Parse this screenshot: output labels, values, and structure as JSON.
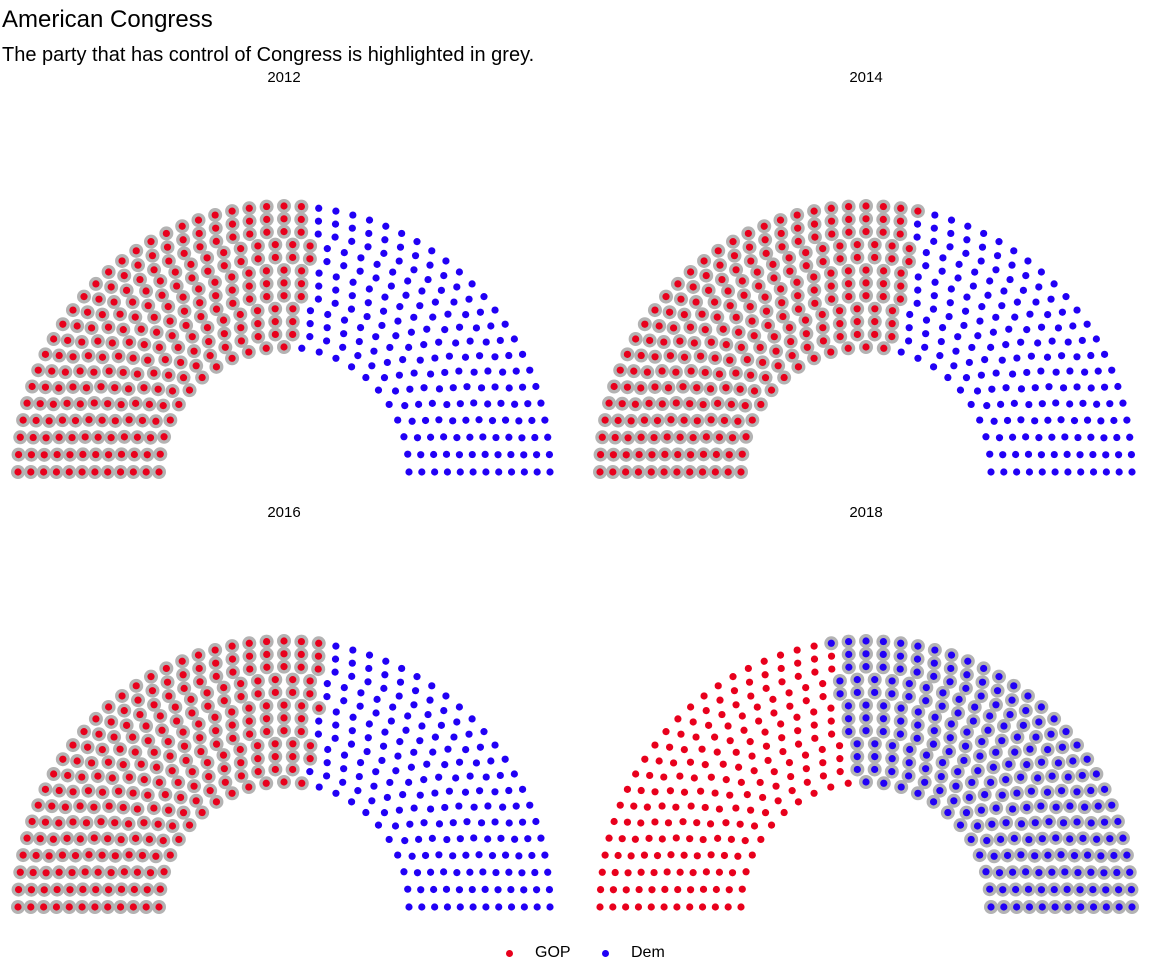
{
  "chart_data": {
    "type": "parliament",
    "title": "American Congress",
    "subtitle": "The party that has control of Congress is highlighted in grey.",
    "legend_placement": "bottom",
    "colors": {
      "GOP": "#e8001c",
      "Dem": "#2100f5",
      "highlight": "#b3b3b3"
    },
    "series": [
      {
        "name": "GOP"
      },
      {
        "name": "Dem"
      }
    ],
    "panels": [
      {
        "year": "2012",
        "total": 435,
        "GOP": 234,
        "Dem": 201,
        "control": "GOP"
      },
      {
        "year": "2014",
        "total": 435,
        "GOP": 247,
        "Dem": 188,
        "control": "GOP"
      },
      {
        "year": "2016",
        "total": 435,
        "GOP": 241,
        "Dem": 194,
        "control": "GOP"
      },
      {
        "year": "2018",
        "total": 435,
        "GOP": 200,
        "Dem": 235,
        "control": "Dem"
      }
    ]
  }
}
